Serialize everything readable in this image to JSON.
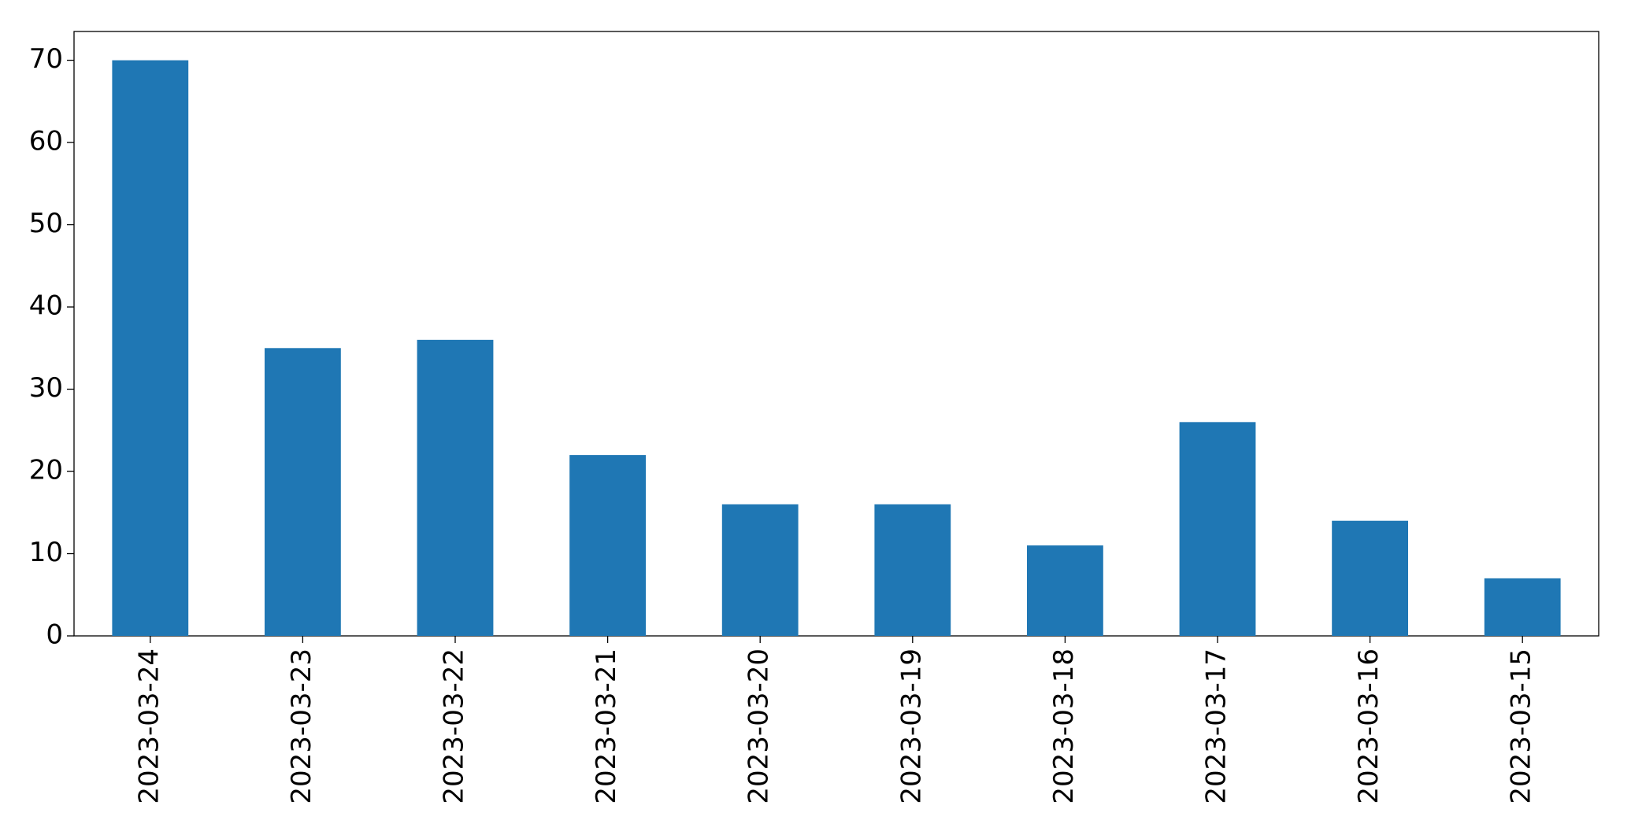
{
  "chart_data": {
    "type": "bar",
    "categories": [
      "2023-03-24",
      "2023-03-23",
      "2023-03-22",
      "2023-03-21",
      "2023-03-20",
      "2023-03-19",
      "2023-03-18",
      "2023-03-17",
      "2023-03-16",
      "2023-03-15"
    ],
    "values": [
      70,
      35,
      36,
      22,
      16,
      16,
      11,
      26,
      14,
      7
    ],
    "color": "#1f77b4",
    "ylim": [
      0,
      73.5
    ],
    "yticks": [
      0,
      10,
      20,
      30,
      40,
      50,
      60,
      70
    ],
    "grid": false
  }
}
